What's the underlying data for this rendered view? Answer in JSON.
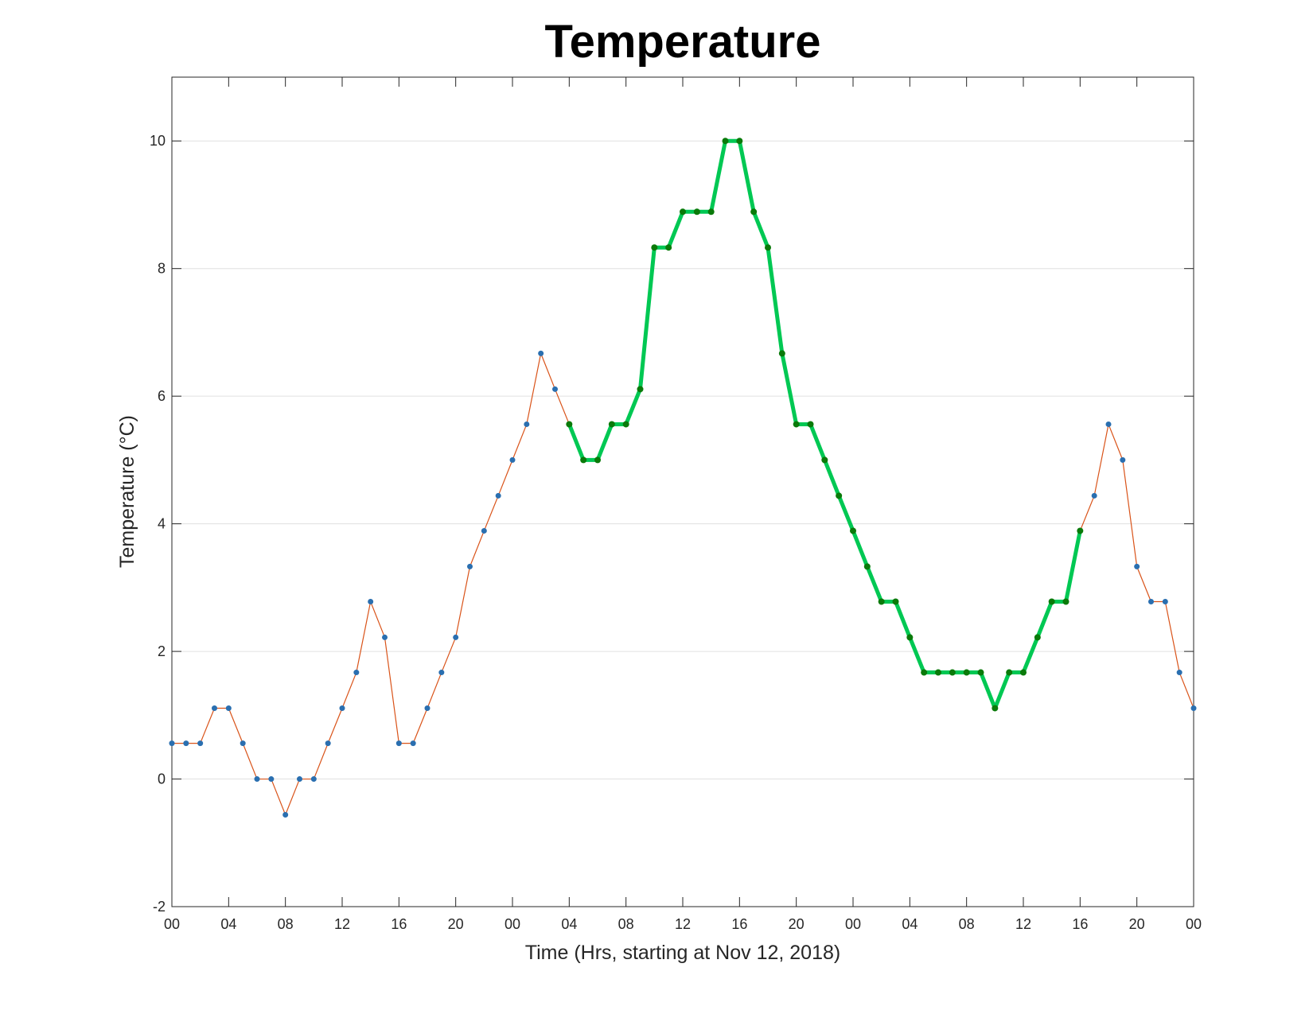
{
  "chart_data": {
    "type": "line",
    "title": "Temperature",
    "xlabel": "Time (Hrs, starting at Nov 12, 2018)",
    "ylabel": "Temperature (°C)",
    "x_unit": "hours",
    "xlim": [
      0,
      72
    ],
    "ylim": [
      -2,
      11
    ],
    "x_ticks": [
      0,
      4,
      8,
      12,
      16,
      20,
      24,
      28,
      32,
      36,
      40,
      44,
      48,
      52,
      56,
      60,
      64,
      68,
      72
    ],
    "x_tick_labels": [
      "00",
      "04",
      "08",
      "12",
      "16",
      "20",
      "00",
      "04",
      "08",
      "12",
      "16",
      "20",
      "00",
      "04",
      "08",
      "12",
      "16",
      "20",
      "00"
    ],
    "y_ticks": [
      -2,
      0,
      2,
      4,
      6,
      8,
      10
    ],
    "y_tick_labels": [
      "-2",
      "0",
      "2",
      "4",
      "6",
      "8",
      "10"
    ],
    "grid": "horizontal",
    "colors": {
      "line": "#d95319",
      "marker": "#2a6fb0",
      "highlight_line": "#00c853",
      "highlight_marker": "#0a7a0a",
      "grid": "#e0e0e0",
      "axis": "#262626"
    },
    "series": [
      {
        "x": [
          0,
          1,
          2,
          3,
          4,
          5,
          6,
          7,
          8,
          9,
          10,
          11,
          12,
          13,
          14,
          15,
          16,
          17,
          18,
          19,
          20,
          21,
          22,
          23,
          24,
          25,
          26,
          27,
          28,
          29,
          30,
          31,
          32,
          33,
          34,
          35,
          36,
          37,
          38,
          39,
          40,
          41,
          42,
          43,
          44,
          45,
          46,
          47,
          48,
          49,
          50,
          51,
          52,
          53,
          54,
          55,
          56,
          57,
          58,
          59,
          60,
          61,
          62,
          63,
          64,
          65,
          66,
          67,
          68,
          69,
          70,
          71,
          72
        ],
        "y": [
          0.56,
          0.56,
          0.56,
          1.11,
          1.11,
          0.56,
          0,
          0,
          -0.56,
          0,
          0,
          0.56,
          1.11,
          1.67,
          2.78,
          2.22,
          0.56,
          0.56,
          1.11,
          1.67,
          2.22,
          3.33,
          3.89,
          4.44,
          5,
          5.56,
          6.67,
          6.11,
          5.56,
          5,
          5,
          5.56,
          5.56,
          6.11,
          8.33,
          8.33,
          8.89,
          8.89,
          8.89,
          10,
          10,
          8.89,
          8.33,
          6.67,
          5.56,
          5.56,
          5,
          4.44,
          3.89,
          3.33,
          2.78,
          2.78,
          2.22,
          1.67,
          1.67,
          1.67,
          1.67,
          1.67,
          1.11,
          1.67,
          1.67,
          2.22,
          2.78,
          2.78,
          3.89,
          4.44,
          5.56,
          5,
          3.33,
          2.78,
          2.78,
          1.67,
          1.11
        ],
        "highlight_range": [
          28,
          64
        ]
      }
    ]
  }
}
